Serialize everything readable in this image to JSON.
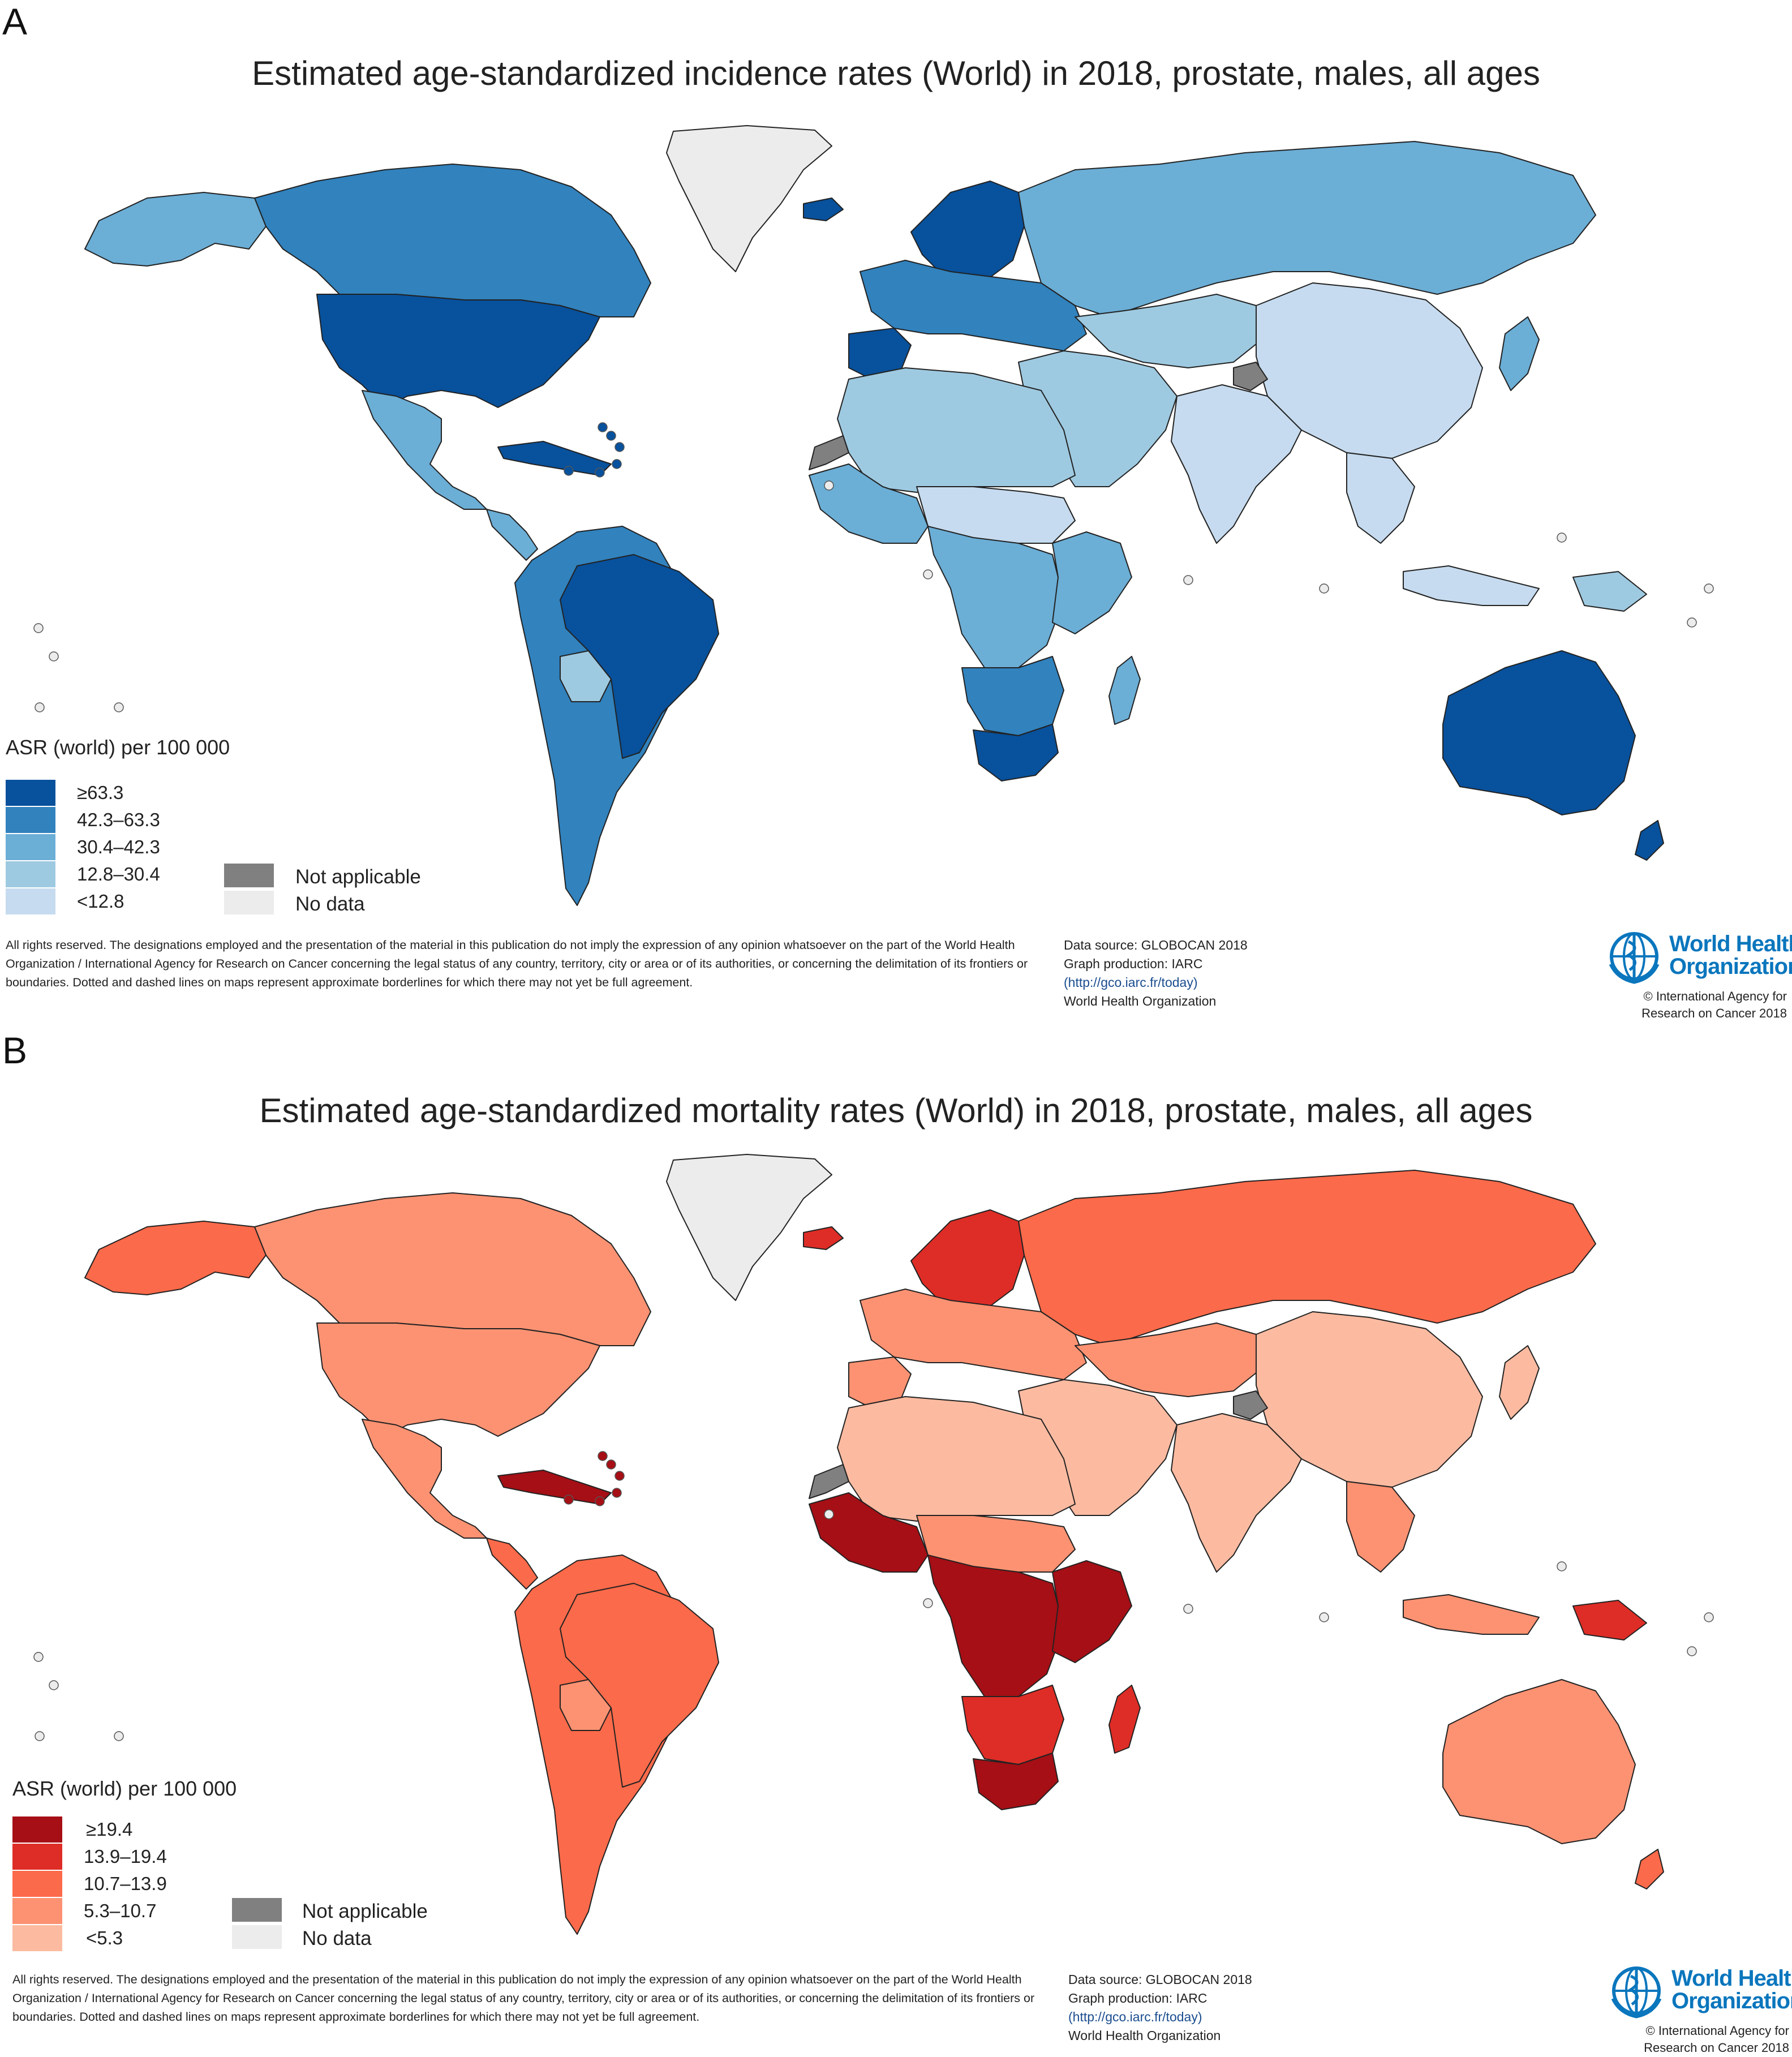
{
  "panel_a": {
    "letter": "A",
    "title": "Estimated age-standardized incidence rates (World) in 2018, prostate, males, all ages",
    "legend_title": "ASR (world)  per 100 000",
    "legend": [
      {
        "label": "≥63.3",
        "color": "#08519c"
      },
      {
        "label": "42.3–63.3",
        "color": "#3182bd"
      },
      {
        "label": "30.4–42.3",
        "color": "#6baed6"
      },
      {
        "label": "12.8–30.4",
        "color": "#9ecae1"
      },
      {
        "label": "<12.8",
        "color": "#c6dbef"
      }
    ],
    "not_applicable": {
      "label": "Not applicable",
      "color": "#808080"
    },
    "no_data": {
      "label": "No data",
      "color": "#ececec"
    }
  },
  "panel_b": {
    "letter": "B",
    "title": "Estimated age-standardized mortality rates (World) in 2018, prostate, males, all ages",
    "legend_title": "ASR (world) per 100 000",
    "legend": [
      {
        "label": "≥19.4",
        "color": "#a50f15"
      },
      {
        "label": "13.9–19.4",
        "color": "#de2d26"
      },
      {
        "label": "10.7–13.9",
        "color": "#fb6a4a"
      },
      {
        "label": "5.3–10.7",
        "color": "#fc9272"
      },
      {
        "label": "<5.3",
        "color": "#fcbba1"
      }
    ],
    "not_applicable": {
      "label": "Not applicable",
      "color": "#808080"
    },
    "no_data": {
      "label": "No data",
      "color": "#ececec"
    }
  },
  "footer": {
    "disclaimer": "All rights reserved. The designations employed and the presentation of the material in this publication do not imply the expression of any opinion whatsoever on the part of the World Health Organization / International Agency for Research on Cancer concerning the legal status of any country, territory, city or area or of its authorities, or concerning the delimitation of its frontiers or boundaries. Dotted and dashed lines on maps represent approximate borderlines for which there may not yet be full agreement.",
    "data_source": "Data source: GLOBOCAN 2018",
    "graph_production": "Graph production: IARC",
    "url": "(http://gco.iarc.fr/today)",
    "org": "World Health Organization",
    "who_name_line1": "World Health",
    "who_name_line2": "Organization",
    "copyright_line1": "© International Agency for",
    "copyright_line2": "Research on Cancer 2018"
  },
  "map_fills": {
    "panel_a": {
      "north_america": "#3182bd",
      "usa": "#08519c",
      "alaska": "#6baed6",
      "greenland": "#ececec",
      "mexico": "#6baed6",
      "central_america": "#6baed6",
      "caribbean": "#08519c",
      "south_america": "#3182bd",
      "brazil": "#08519c",
      "bolivia": "#9ecae1",
      "europe_north": "#08519c",
      "europe": "#3182bd",
      "iberia": "#08519c",
      "iceland": "#08519c",
      "russia": "#6baed6",
      "central_asia": "#9ecae1",
      "middle_east": "#9ecae1",
      "south_asia": "#c6dbef",
      "china": "#c6dbef",
      "se_asia": "#c6dbef",
      "japan": "#6baed6",
      "north_africa": "#9ecae1",
      "sahel": "#c6dbef",
      "west_africa": "#6baed6",
      "central_africa": "#6baed6",
      "east_africa": "#6baed6",
      "southern_africa": "#3182bd",
      "south_africa": "#08519c",
      "madagascar": "#6baed6",
      "australia": "#08519c",
      "nz": "#08519c",
      "indonesia": "#c6dbef",
      "png": "#9ecae1",
      "western_sahara": "#808080",
      "kashmir": "#808080"
    },
    "panel_b": {
      "north_america": "#fc9272",
      "usa": "#fc9272",
      "alaska": "#fb6a4a",
      "greenland": "#ececec",
      "mexico": "#fc9272",
      "central_america": "#fb6a4a",
      "caribbean": "#a50f15",
      "south_america": "#fb6a4a",
      "brazil": "#fb6a4a",
      "bolivia": "#fc9272",
      "europe_north": "#de2d26",
      "europe": "#fc9272",
      "iberia": "#fc9272",
      "iceland": "#de2d26",
      "russia": "#fb6a4a",
      "central_asia": "#fc9272",
      "middle_east": "#fcbba1",
      "south_asia": "#fcbba1",
      "china": "#fcbba1",
      "se_asia": "#fc9272",
      "japan": "#fcbba1",
      "north_africa": "#fcbba1",
      "sahel": "#fc9272",
      "west_africa": "#a50f15",
      "central_africa": "#a50f15",
      "east_africa": "#a50f15",
      "southern_africa": "#de2d26",
      "south_africa": "#a50f15",
      "madagascar": "#de2d26",
      "australia": "#fc9272",
      "nz": "#fb6a4a",
      "indonesia": "#fc9272",
      "png": "#de2d26",
      "western_sahara": "#808080",
      "kashmir": "#808080"
    }
  }
}
